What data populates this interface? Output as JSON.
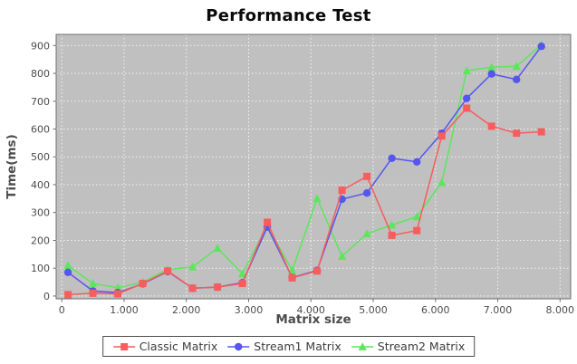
{
  "title": {
    "text": "Performance Test"
  },
  "colors": {
    "plot_background": "#c0c0c0",
    "grid": "#f2f2f2",
    "plot_border": "#6e6e6e",
    "tick_mark": "#6e6e6e",
    "axis_text": "#4d4d4d",
    "title_text": "#0a0a0a",
    "legend_border": "#4d4d4d",
    "series_red": "#f85c5c",
    "series_blue": "#5555f0",
    "series_green": "#5ce65c"
  },
  "chart_data": {
    "type": "line",
    "title": "Performance Test",
    "xlabel": "Matrix size",
    "ylabel": "Time(ms)",
    "legend_position": "bottom",
    "grid": "on",
    "xlim": [
      -90,
      8170
    ],
    "ylim": [
      -10,
      940
    ],
    "xticks": [
      {
        "v": 0,
        "label": "0"
      },
      {
        "v": 1000,
        "label": "1.000"
      },
      {
        "v": 2000,
        "label": "2.000"
      },
      {
        "v": 3000,
        "label": "3.000"
      },
      {
        "v": 4000,
        "label": "4.000"
      },
      {
        "v": 5000,
        "label": "5.000"
      },
      {
        "v": 6000,
        "label": "6.000"
      },
      {
        "v": 7000,
        "label": "7.000"
      },
      {
        "v": 8000,
        "label": "8.000"
      }
    ],
    "yticks": [
      {
        "v": 0,
        "label": "0"
      },
      {
        "v": 100,
        "label": "100"
      },
      {
        "v": 200,
        "label": "200"
      },
      {
        "v": 300,
        "label": "300"
      },
      {
        "v": 400,
        "label": "400"
      },
      {
        "v": 500,
        "label": "500"
      },
      {
        "v": 600,
        "label": "600"
      },
      {
        "v": 700,
        "label": "700"
      },
      {
        "v": 800,
        "label": "800"
      },
      {
        "v": 900,
        "label": "900"
      }
    ],
    "x": [
      100,
      500,
      900,
      1300,
      1700,
      2100,
      2500,
      2900,
      3300,
      3700,
      4100,
      4500,
      4900,
      5300,
      5700,
      6100,
      6500,
      6900,
      7300,
      7700
    ],
    "series": [
      {
        "name": "Classic Matrix",
        "color": "#f85c5c",
        "marker": "square",
        "values": [
          5,
          10,
          8,
          45,
          90,
          28,
          32,
          45,
          265,
          65,
          90,
          380,
          430,
          218,
          235,
          575,
          675,
          610,
          585,
          590
        ]
      },
      {
        "name": "Stream1 Matrix",
        "color": "#5555f0",
        "marker": "circle",
        "values": [
          85,
          18,
          12,
          44,
          88,
          28,
          32,
          48,
          248,
          66,
          92,
          348,
          370,
          495,
          482,
          585,
          710,
          798,
          778,
          897
        ]
      },
      {
        "name": "Stream2 Matrix",
        "color": "#5ce65c",
        "marker": "triangle",
        "values": [
          110,
          45,
          30,
          50,
          95,
          105,
          172,
          80,
          252,
          92,
          350,
          143,
          224,
          255,
          285,
          408,
          810,
          822,
          825,
          903
        ]
      }
    ]
  }
}
